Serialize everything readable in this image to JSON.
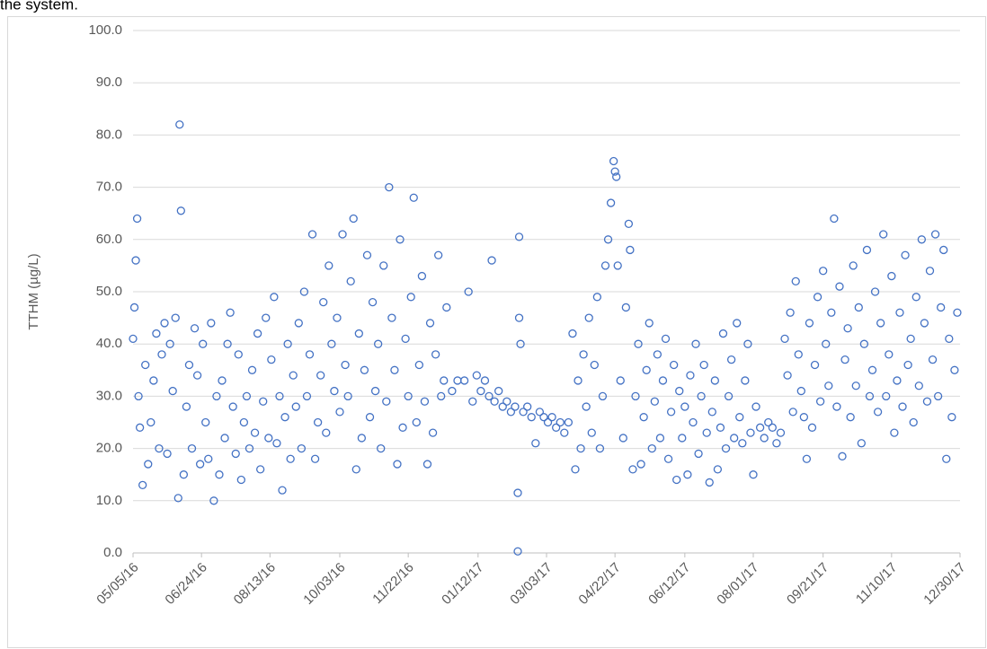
{
  "annotation": "the system.",
  "chart_data": {
    "type": "scatter",
    "y_label": "TTHM (µg/L)",
    "color": "#4472c4",
    "grid": true,
    "xlim": [
      "05/05/16",
      "12/30/17"
    ],
    "xticks": [
      "05/05/16",
      "06/24/16",
      "08/13/16",
      "10/03/16",
      "11/22/16",
      "01/12/17",
      "03/03/17",
      "04/22/17",
      "06/12/17",
      "08/01/17",
      "09/21/17",
      "11/10/17",
      "12/30/17"
    ],
    "ylim": [
      0,
      100
    ],
    "yticks": [
      {
        "value": 0,
        "label": "0.0"
      },
      {
        "value": 10,
        "label": "10.0"
      },
      {
        "value": 20,
        "label": "20.0"
      },
      {
        "value": 30,
        "label": "30.0"
      },
      {
        "value": 40,
        "label": "40.0"
      },
      {
        "value": 50,
        "label": "50.0"
      },
      {
        "value": 60,
        "label": "60.0"
      },
      {
        "value": 70,
        "label": "70.0"
      },
      {
        "value": 80,
        "label": "80.0"
      },
      {
        "value": 90,
        "label": "90.0"
      },
      {
        "value": 100,
        "label": "100.0"
      }
    ],
    "x": [
      "05/05/16",
      "05/06/16",
      "05/07/16",
      "05/08/16",
      "05/09/16",
      "05/10/16",
      "05/12/16",
      "05/14/16",
      "05/16/16",
      "05/18/16",
      "05/20/16",
      "05/22/16",
      "05/24/16",
      "05/26/16",
      "05/28/16",
      "05/30/16",
      "06/01/16",
      "06/03/16",
      "06/05/16",
      "06/07/16",
      "06/08/16",
      "06/09/16",
      "06/11/16",
      "06/13/16",
      "06/15/16",
      "06/17/16",
      "06/19/16",
      "06/21/16",
      "06/23/16",
      "06/25/16",
      "06/27/16",
      "06/29/16",
      "07/01/16",
      "07/03/16",
      "07/05/16",
      "07/07/16",
      "07/09/16",
      "07/11/16",
      "07/13/16",
      "07/15/16",
      "07/17/16",
      "07/19/16",
      "07/21/16",
      "07/23/16",
      "07/25/16",
      "07/27/16",
      "07/29/16",
      "07/31/16",
      "08/02/16",
      "08/04/16",
      "08/06/16",
      "08/08/16",
      "08/10/16",
      "08/12/16",
      "08/14/16",
      "08/16/16",
      "08/18/16",
      "08/20/16",
      "08/22/16",
      "08/24/16",
      "08/26/16",
      "08/28/16",
      "08/30/16",
      "09/01/16",
      "09/03/16",
      "09/05/16",
      "09/07/16",
      "09/09/16",
      "09/11/16",
      "09/13/16",
      "09/15/16",
      "09/17/16",
      "09/19/16",
      "09/21/16",
      "09/23/16",
      "09/25/16",
      "09/27/16",
      "09/29/16",
      "10/01/16",
      "10/03/16",
      "10/05/16",
      "10/07/16",
      "10/09/16",
      "10/11/16",
      "10/13/16",
      "10/15/16",
      "10/17/16",
      "10/19/16",
      "10/21/16",
      "10/23/16",
      "10/25/16",
      "10/27/16",
      "10/29/16",
      "10/31/16",
      "11/02/16",
      "11/04/16",
      "11/06/16",
      "11/08/16",
      "11/10/16",
      "11/12/16",
      "11/14/16",
      "11/16/16",
      "11/18/16",
      "11/20/16",
      "11/22/16",
      "11/24/16",
      "11/26/16",
      "11/28/16",
      "11/30/16",
      "12/02/16",
      "12/04/16",
      "12/06/16",
      "12/08/16",
      "12/10/16",
      "12/12/16",
      "12/14/16",
      "12/16/16",
      "12/18/16",
      "12/20/16",
      "12/24/16",
      "12/28/16",
      "01/02/17",
      "01/05/17",
      "01/08/17",
      "01/11/17",
      "01/14/17",
      "01/17/17",
      "01/20/17",
      "01/22/17",
      "01/24/17",
      "01/27/17",
      "01/30/17",
      "02/02/17",
      "02/05/17",
      "02/08/17",
      "02/10/17",
      "02/10/17",
      "02/11/17",
      "02/11/17",
      "02/12/17",
      "02/14/17",
      "02/17/17",
      "02/20/17",
      "02/23/17",
      "02/26/17",
      "03/01/17",
      "03/04/17",
      "03/07/17",
      "03/10/17",
      "03/13/17",
      "03/16/17",
      "03/19/17",
      "03/22/17",
      "03/24/17",
      "03/26/17",
      "03/28/17",
      "03/30/17",
      "04/01/17",
      "04/03/17",
      "04/05/17",
      "04/07/17",
      "04/09/17",
      "04/11/17",
      "04/13/17",
      "04/15/17",
      "04/17/17",
      "04/19/17",
      "04/21/17",
      "04/22/17",
      "04/23/17",
      "04/24/17",
      "04/26/17",
      "04/28/17",
      "04/30/17",
      "05/02/17",
      "05/03/17",
      "05/05/17",
      "05/07/17",
      "05/09/17",
      "05/11/17",
      "05/13/17",
      "05/15/17",
      "05/17/17",
      "05/19/17",
      "05/21/17",
      "05/23/17",
      "05/25/17",
      "05/27/17",
      "05/29/17",
      "05/31/17",
      "06/02/17",
      "06/04/17",
      "06/06/17",
      "06/08/17",
      "06/10/17",
      "06/12/17",
      "06/14/17",
      "06/16/17",
      "06/18/17",
      "06/20/17",
      "06/22/17",
      "06/24/17",
      "06/26/17",
      "06/28/17",
      "06/30/17",
      "07/02/17",
      "07/04/17",
      "07/06/17",
      "07/08/17",
      "07/10/17",
      "07/12/17",
      "07/14/17",
      "07/16/17",
      "07/18/17",
      "07/20/17",
      "07/22/17",
      "07/24/17",
      "07/26/17",
      "07/28/17",
      "07/30/17",
      "08/01/17",
      "08/03/17",
      "08/06/17",
      "08/09/17",
      "08/12/17",
      "08/15/17",
      "08/18/17",
      "08/21/17",
      "08/24/17",
      "08/26/17",
      "08/28/17",
      "08/30/17",
      "09/01/17",
      "09/03/17",
      "09/05/17",
      "09/07/17",
      "09/09/17",
      "09/11/17",
      "09/13/17",
      "09/15/17",
      "09/17/17",
      "09/19/17",
      "09/21/17",
      "09/23/17",
      "09/25/17",
      "09/27/17",
      "09/29/17",
      "10/01/17",
      "10/03/17",
      "10/05/17",
      "10/07/17",
      "10/09/17",
      "10/11/17",
      "10/13/17",
      "10/15/17",
      "10/17/17",
      "10/19/17",
      "10/21/17",
      "10/23/17",
      "10/25/17",
      "10/27/17",
      "10/29/17",
      "10/31/17",
      "11/02/17",
      "11/04/17",
      "11/06/17",
      "11/08/17",
      "11/10/17",
      "11/12/17",
      "11/14/17",
      "11/16/17",
      "11/18/17",
      "11/20/17",
      "11/22/17",
      "11/24/17",
      "11/26/17",
      "11/28/17",
      "11/30/17",
      "12/02/17",
      "12/04/17",
      "12/06/17",
      "12/08/17",
      "12/10/17",
      "12/12/17",
      "12/14/17",
      "12/16/17",
      "12/18/17",
      "12/20/17",
      "12/22/17",
      "12/24/17",
      "12/26/17",
      "12/28/17"
    ],
    "values": [
      41,
      47,
      56,
      64,
      30,
      24,
      13,
      36,
      17,
      25,
      33,
      42,
      20,
      38,
      44,
      19,
      40,
      31,
      45,
      10.5,
      82,
      65.5,
      15,
      28,
      36,
      20,
      43,
      34,
      17,
      40,
      25,
      18,
      44,
      10,
      30,
      15,
      33,
      22,
      40,
      46,
      28,
      19,
      38,
      14,
      25,
      30,
      20,
      35,
      23,
      42,
      16,
      29,
      45,
      22,
      37,
      49,
      21,
      30,
      12,
      26,
      40,
      18,
      34,
      28,
      44,
      20,
      50,
      30,
      38,
      61,
      18,
      25,
      34,
      48,
      23,
      55,
      40,
      31,
      45,
      27,
      61,
      36,
      30,
      52,
      64,
      16,
      42,
      22,
      35,
      57,
      26,
      48,
      31,
      40,
      20,
      55,
      29,
      70,
      45,
      35,
      17,
      60,
      24,
      41,
      30,
      49,
      68,
      25,
      36,
      53,
      29,
      17,
      44,
      23,
      38,
      57,
      30,
      33,
      47,
      31,
      33,
      33,
      50,
      29,
      34,
      31,
      33,
      30,
      56,
      29,
      31,
      28,
      29,
      27,
      28,
      11.5,
      0.3,
      60.5,
      45,
      40,
      27,
      28,
      26,
      21,
      27,
      26,
      25,
      26,
      24,
      25,
      23,
      25,
      42,
      16,
      33,
      20,
      38,
      28,
      45,
      23,
      36,
      49,
      20,
      30,
      55,
      60,
      67,
      75,
      73,
      72,
      55,
      33,
      22,
      47,
      63,
      58,
      16,
      30,
      40,
      17,
      26,
      35,
      44,
      20,
      29,
      38,
      22,
      33,
      41,
      18,
      27,
      36,
      14,
      31,
      22,
      28,
      15,
      34,
      25,
      40,
      19,
      30,
      36,
      23,
      13.5,
      27,
      33,
      16,
      24,
      42,
      20,
      30,
      37,
      22,
      44,
      26,
      21,
      33,
      40,
      23,
      15,
      28,
      24,
      22,
      25,
      24,
      21,
      23,
      41,
      34,
      46,
      27,
      52,
      38,
      31,
      26,
      18,
      44,
      24,
      36,
      49,
      29,
      54,
      40,
      32,
      46,
      64,
      28,
      51,
      18.5,
      37,
      43,
      26,
      55,
      32,
      47,
      21,
      40,
      58,
      30,
      35,
      50,
      27,
      44,
      61,
      30,
      38,
      53,
      23,
      33,
      46,
      28,
      57,
      36,
      41,
      25,
      49,
      32,
      60,
      44,
      29,
      54,
      37,
      61,
      30,
      47,
      58,
      18,
      41,
      26,
      35,
      46
    ]
  }
}
